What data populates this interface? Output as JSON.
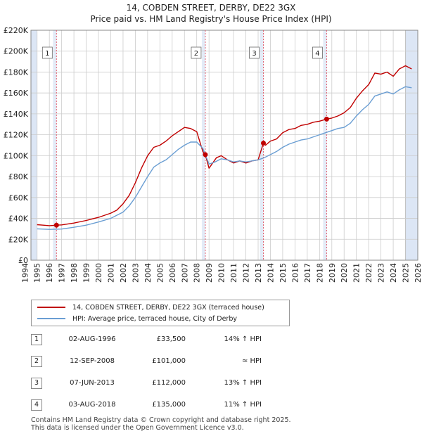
{
  "title": {
    "line1": "14, COBDEN STREET, DERBY, DE22 3GX",
    "line2": "Price paid vs. HM Land Registry's House Price Index (HPI)"
  },
  "colors": {
    "price_line": "#c00000",
    "hpi_line": "#6a9ed3",
    "shade": "#dce6f5",
    "grid": "#cccccc",
    "marker_vline": "#e06070"
  },
  "chart_data": {
    "type": "line",
    "title": "Price paid vs. HM Land Registry's House Price Index (HPI)",
    "xlabel": "",
    "ylabel": "",
    "xlim": [
      1994.5,
      2026.0
    ],
    "ylim": [
      0,
      220000
    ],
    "y_ticks": [
      0,
      20000,
      40000,
      60000,
      80000,
      100000,
      120000,
      140000,
      160000,
      180000,
      200000,
      220000
    ],
    "y_tick_labels": [
      "£0",
      "£20K",
      "£40K",
      "£60K",
      "£80K",
      "£100K",
      "£120K",
      "£140K",
      "£160K",
      "£180K",
      "£200K",
      "£220K"
    ],
    "x_ticks": [
      1994,
      1995,
      1996,
      1997,
      1998,
      1999,
      2000,
      2001,
      2002,
      2003,
      2004,
      2005,
      2006,
      2007,
      2008,
      2009,
      2010,
      2011,
      2012,
      2013,
      2014,
      2015,
      2016,
      2017,
      2018,
      2019,
      2020,
      2021,
      2022,
      2023,
      2024,
      2025,
      2026
    ],
    "x_tick_labels": [
      "1994",
      "1995",
      "1996",
      "1997",
      "1998",
      "1999",
      "2000",
      "2001",
      "2002",
      "2003",
      "2004",
      "2005",
      "2006",
      "2007",
      "2008",
      "2009",
      "2010",
      "2011",
      "2012",
      "2013",
      "2014",
      "2015",
      "2016",
      "2017",
      "2018",
      "2019",
      "2020",
      "2021",
      "2022",
      "2023",
      "2024",
      "2025",
      "2026"
    ],
    "grid": true,
    "series": [
      {
        "name": "14, COBDEN STREET, DERBY, DE22 3GX (terraced house)",
        "color": "#c00000",
        "x": [
          1995.0,
          1995.5,
          1996.0,
          1996.58,
          1997.0,
          1998.0,
          1999.0,
          2000.0,
          2001.0,
          2001.5,
          2002.0,
          2002.5,
          2003.0,
          2003.5,
          2004.0,
          2004.5,
          2005.0,
          2005.5,
          2006.0,
          2006.5,
          2007.0,
          2007.5,
          2008.0,
          2008.5,
          2008.7,
          2009.0,
          2009.3,
          2009.6,
          2010.0,
          2010.5,
          2011.0,
          2011.5,
          2012.0,
          2012.5,
          2013.0,
          2013.43,
          2013.6,
          2014.0,
          2014.5,
          2015.0,
          2015.5,
          2016.0,
          2016.5,
          2017.0,
          2017.5,
          2018.0,
          2018.58,
          2019.0,
          2019.5,
          2020.0,
          2020.5,
          2021.0,
          2021.5,
          2022.0,
          2022.5,
          2023.0,
          2023.5,
          2024.0,
          2024.5,
          2025.0,
          2025.5
        ],
        "values": [
          34000,
          33500,
          33000,
          33500,
          33800,
          35500,
          38000,
          41000,
          45000,
          48000,
          54000,
          62000,
          74000,
          88000,
          100000,
          108000,
          110000,
          114000,
          119000,
          123000,
          127000,
          126000,
          123000,
          104000,
          101000,
          88000,
          93000,
          98000,
          100000,
          96000,
          93000,
          95000,
          93000,
          95000,
          96000,
          112000,
          110000,
          114000,
          116000,
          122000,
          125000,
          126000,
          129000,
          130000,
          132000,
          133000,
          135000,
          136000,
          138000,
          141000,
          146000,
          155000,
          162000,
          168000,
          179000,
          178000,
          180000,
          176000,
          183000,
          186000,
          183000
        ]
      },
      {
        "name": "HPI: Average price, terraced house, City of Derby",
        "color": "#6a9ed3",
        "x": [
          1995.0,
          1996.0,
          1997.0,
          1998.0,
          1999.0,
          2000.0,
          2001.0,
          2002.0,
          2002.5,
          2003.0,
          2003.5,
          2004.0,
          2004.5,
          2005.0,
          2005.5,
          2006.0,
          2006.5,
          2007.0,
          2007.5,
          2008.0,
          2008.5,
          2009.0,
          2009.5,
          2010.0,
          2010.5,
          2011.0,
          2011.5,
          2012.0,
          2012.5,
          2013.0,
          2013.5,
          2014.0,
          2014.5,
          2015.0,
          2015.5,
          2016.0,
          2016.5,
          2017.0,
          2017.5,
          2018.0,
          2018.5,
          2019.0,
          2019.5,
          2020.0,
          2020.5,
          2021.0,
          2021.5,
          2022.0,
          2022.5,
          2023.0,
          2023.5,
          2024.0,
          2024.5,
          2025.0,
          2025.5
        ],
        "values": [
          30000,
          29500,
          29800,
          31500,
          33500,
          36500,
          40000,
          46000,
          52000,
          60000,
          70000,
          80000,
          89000,
          93000,
          96000,
          101000,
          106000,
          110000,
          113000,
          113000,
          107000,
          92000,
          94000,
          97000,
          96000,
          94000,
          95000,
          94000,
          95000,
          96000,
          98000,
          101000,
          104000,
          108000,
          111000,
          113000,
          115000,
          116000,
          118000,
          120000,
          122000,
          124000,
          126000,
          127000,
          131000,
          138000,
          144000,
          149000,
          157000,
          159000,
          161000,
          159000,
          163000,
          166000,
          165000
        ]
      }
    ],
    "sale_markers": [
      {
        "label": "1",
        "x": 1996.58,
        "value": 33500
      },
      {
        "label": "2",
        "x": 2008.7,
        "value": 101000
      },
      {
        "label": "3",
        "x": 2013.43,
        "value": 112000
      },
      {
        "label": "4",
        "x": 2018.58,
        "value": 135000
      }
    ],
    "shaded_ranges": [
      [
        1994.5,
        1995.0
      ],
      [
        2025.0,
        2026.0
      ]
    ]
  },
  "legend": {
    "price_label": "14, COBDEN STREET, DERBY, DE22 3GX (terraced house)",
    "hpi_label": "HPI: Average price, terraced house, City of Derby"
  },
  "sales": [
    {
      "num": "1",
      "date": "02-AUG-1996",
      "price": "£33,500",
      "hpi": "14% ↑ HPI"
    },
    {
      "num": "2",
      "date": "12-SEP-2008",
      "price": "£101,000",
      "hpi": "≈ HPI"
    },
    {
      "num": "3",
      "date": "07-JUN-2013",
      "price": "£112,000",
      "hpi": "13% ↑ HPI"
    },
    {
      "num": "4",
      "date": "03-AUG-2018",
      "price": "£135,000",
      "hpi": "11% ↑ HPI"
    }
  ],
  "footer": {
    "line1": "Contains HM Land Registry data © Crown copyright and database right 2025.",
    "line2": "This data is licensed under the Open Government Licence v3.0."
  }
}
